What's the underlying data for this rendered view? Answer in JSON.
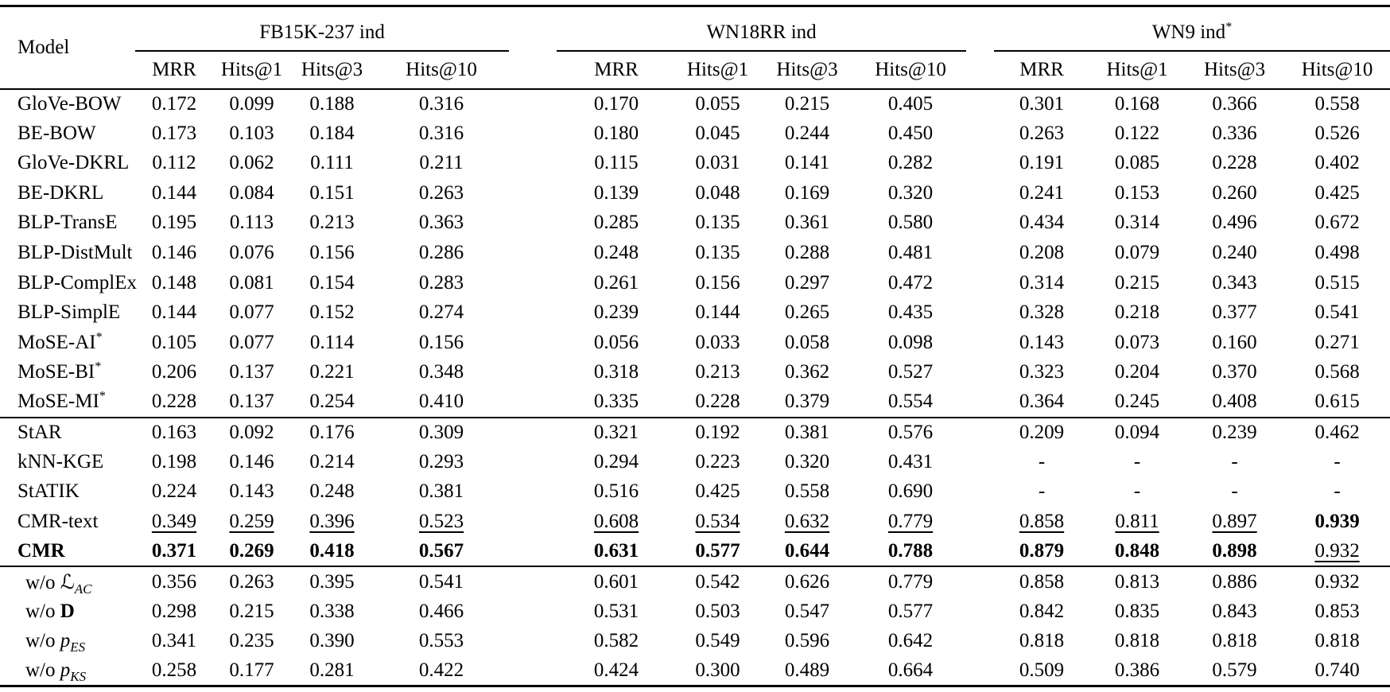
{
  "table": {
    "model_header": "Model",
    "groups": [
      {
        "label": "FB15K-237 ind",
        "sup": ""
      },
      {
        "label": "WN18RR ind",
        "sup": ""
      },
      {
        "label": "WN9 ind",
        "sup": "*"
      }
    ],
    "metrics": [
      "MRR",
      "Hits@1",
      "Hits@3",
      "Hits@10"
    ],
    "sections": [
      {
        "rows": [
          {
            "label": {
              "text": "GloVe-BOW"
            },
            "cells": [
              "0.172",
              "0.099",
              "0.188",
              "0.316",
              "0.170",
              "0.055",
              "0.215",
              "0.405",
              "0.301",
              "0.168",
              "0.366",
              "0.558"
            ]
          },
          {
            "label": {
              "text": "BE-BOW"
            },
            "cells": [
              "0.173",
              "0.103",
              "0.184",
              "0.316",
              "0.180",
              "0.045",
              "0.244",
              "0.450",
              "0.263",
              "0.122",
              "0.336",
              "0.526"
            ]
          },
          {
            "label": {
              "text": "GloVe-DKRL"
            },
            "cells": [
              "0.112",
              "0.062",
              "0.111",
              "0.211",
              "0.115",
              "0.031",
              "0.141",
              "0.282",
              "0.191",
              "0.085",
              "0.228",
              "0.402"
            ]
          },
          {
            "label": {
              "text": "BE-DKRL"
            },
            "cells": [
              "0.144",
              "0.084",
              "0.151",
              "0.263",
              "0.139",
              "0.048",
              "0.169",
              "0.320",
              "0.241",
              "0.153",
              "0.260",
              "0.425"
            ]
          },
          {
            "label": {
              "text": "BLP-TransE"
            },
            "cells": [
              "0.195",
              "0.113",
              "0.213",
              "0.363",
              "0.285",
              "0.135",
              "0.361",
              "0.580",
              "0.434",
              "0.314",
              "0.496",
              "0.672"
            ]
          },
          {
            "label": {
              "text": "BLP-DistMult"
            },
            "cells": [
              "0.146",
              "0.076",
              "0.156",
              "0.286",
              "0.248",
              "0.135",
              "0.288",
              "0.481",
              "0.208",
              "0.079",
              "0.240",
              "0.498"
            ]
          },
          {
            "label": {
              "text": "BLP-ComplEx"
            },
            "cells": [
              "0.148",
              "0.081",
              "0.154",
              "0.283",
              "0.261",
              "0.156",
              "0.297",
              "0.472",
              "0.314",
              "0.215",
              "0.343",
              "0.515"
            ]
          },
          {
            "label": {
              "text": "BLP-SimplE"
            },
            "cells": [
              "0.144",
              "0.077",
              "0.152",
              "0.274",
              "0.239",
              "0.144",
              "0.265",
              "0.435",
              "0.328",
              "0.218",
              "0.377",
              "0.541"
            ]
          },
          {
            "label": {
              "text": "MoSE-AI",
              "sup": "*"
            },
            "cells": [
              "0.105",
              "0.077",
              "0.114",
              "0.156",
              "0.056",
              "0.033",
              "0.058",
              "0.098",
              "0.143",
              "0.073",
              "0.160",
              "0.271"
            ]
          },
          {
            "label": {
              "text": "MoSE-BI",
              "sup": "*"
            },
            "cells": [
              "0.206",
              "0.137",
              "0.221",
              "0.348",
              "0.318",
              "0.213",
              "0.362",
              "0.527",
              "0.323",
              "0.204",
              "0.370",
              "0.568"
            ]
          },
          {
            "label": {
              "text": "MoSE-MI",
              "sup": "*"
            },
            "cells": [
              "0.228",
              "0.137",
              "0.254",
              "0.410",
              "0.335",
              "0.228",
              "0.379",
              "0.554",
              "0.364",
              "0.245",
              "0.408",
              "0.615"
            ]
          }
        ]
      },
      {
        "rows": [
          {
            "label": {
              "text": "StAR"
            },
            "cells": [
              "0.163",
              "0.092",
              "0.176",
              "0.309",
              "0.321",
              "0.192",
              "0.381",
              "0.576",
              "0.209",
              "0.094",
              "0.239",
              "0.462"
            ]
          },
          {
            "label": {
              "text": "kNN-KGE"
            },
            "cells": [
              "0.198",
              "0.146",
              "0.214",
              "0.293",
              "0.294",
              "0.223",
              "0.320",
              "0.431",
              "-",
              "-",
              "-",
              "-"
            ]
          },
          {
            "label": {
              "text": "StATIK"
            },
            "cells": [
              "0.224",
              "0.143",
              "0.248",
              "0.381",
              "0.516",
              "0.425",
              "0.558",
              "0.690",
              "-",
              "-",
              "-",
              "-"
            ]
          },
          {
            "label": {
              "text": "CMR-text"
            },
            "cells": [
              "0.349",
              "0.259",
              "0.396",
              "0.523",
              "0.608",
              "0.534",
              "0.632",
              "0.779",
              "0.858",
              "0.811",
              "0.897",
              "0.939"
            ],
            "fmt": [
              "u",
              "u",
              "u",
              "u",
              "u",
              "u",
              "u",
              "u",
              "u",
              "u",
              "u",
              "b"
            ]
          },
          {
            "label": {
              "text": "CMR",
              "bold": true
            },
            "cells": [
              "0.371",
              "0.269",
              "0.418",
              "0.567",
              "0.631",
              "0.577",
              "0.644",
              "0.788",
              "0.879",
              "0.848",
              "0.898",
              "0.932"
            ],
            "fmt": [
              "b",
              "b",
              "b",
              "b",
              "b",
              "b",
              "b",
              "b",
              "b",
              "b",
              "b",
              "u"
            ]
          }
        ]
      },
      {
        "rows": [
          {
            "label": {
              "prefix": "w/o ",
              "sym": "ℒ",
              "symStyle": "cal",
              "sub": "AC",
              "indent": true
            },
            "cells": [
              "0.356",
              "0.263",
              "0.395",
              "0.541",
              "0.601",
              "0.542",
              "0.626",
              "0.779",
              "0.858",
              "0.813",
              "0.886",
              "0.932"
            ]
          },
          {
            "label": {
              "prefix": "w/o ",
              "sym": "D",
              "symStyle": "bold",
              "sub": "",
              "indent": true
            },
            "cells": [
              "0.298",
              "0.215",
              "0.338",
              "0.466",
              "0.531",
              "0.503",
              "0.547",
              "0.577",
              "0.842",
              "0.835",
              "0.843",
              "0.853"
            ]
          },
          {
            "label": {
              "prefix": "w/o ",
              "sym": "p",
              "symStyle": "italic",
              "sub": "ES",
              "indent": true
            },
            "cells": [
              "0.341",
              "0.235",
              "0.390",
              "0.553",
              "0.582",
              "0.549",
              "0.596",
              "0.642",
              "0.818",
              "0.818",
              "0.818",
              "0.818"
            ]
          },
          {
            "label": {
              "prefix": "w/o ",
              "sym": "p",
              "symStyle": "italic",
              "sub": "KS",
              "indent": true
            },
            "cells": [
              "0.258",
              "0.177",
              "0.281",
              "0.422",
              "0.424",
              "0.300",
              "0.489",
              "0.664",
              "0.509",
              "0.386",
              "0.579",
              "0.740"
            ]
          }
        ]
      }
    ]
  }
}
